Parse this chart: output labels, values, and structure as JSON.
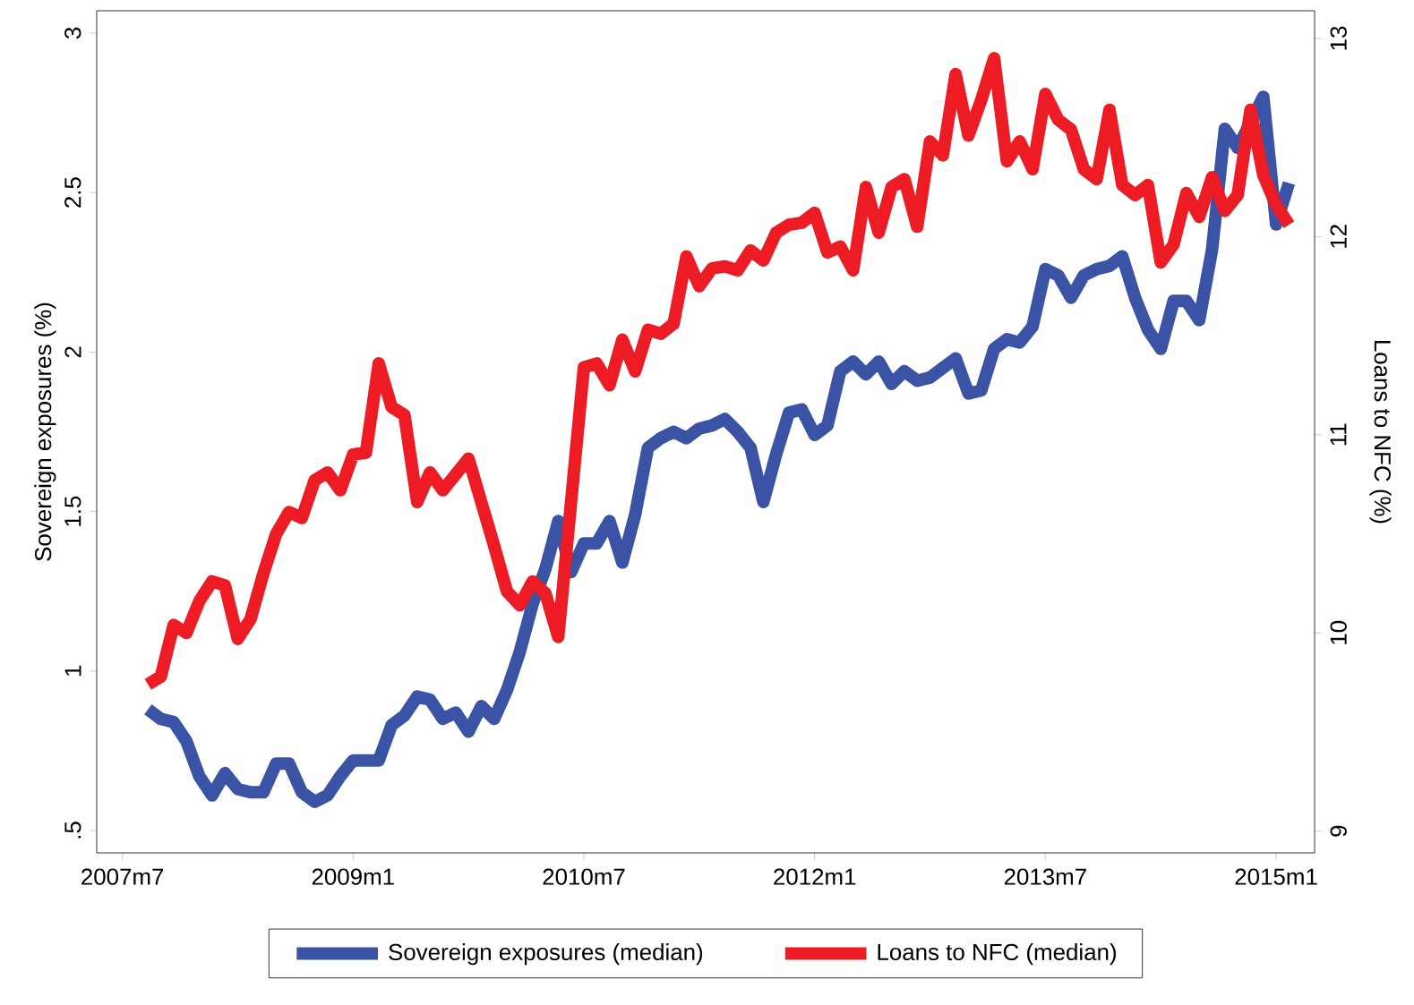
{
  "chart_data": {
    "type": "line",
    "ylabel": "Sovereign exposures (%)",
    "y2label": "Loans to NFC (%)",
    "xlim": [
      "2007-05",
      "2015-04"
    ],
    "xticks": [
      {
        "value": "2007-07",
        "label": "2007m7"
      },
      {
        "value": "2009-01",
        "label": "2009m1"
      },
      {
        "value": "2010-07",
        "label": "2010m7"
      },
      {
        "value": "2012-01",
        "label": "2012m1"
      },
      {
        "value": "2013-07",
        "label": "2013m7"
      },
      {
        "value": "2015-01",
        "label": "2015m1"
      }
    ],
    "ylim": [
      0.43,
      3.07
    ],
    "yticks": [
      {
        "value": 0.5,
        "label": ".5"
      },
      1,
      1.5,
      2,
      2.5,
      3
    ],
    "y2lim": [
      8.89,
      13.14
    ],
    "y2ticks": [
      9,
      10,
      11,
      12,
      13
    ],
    "legend": "bottom",
    "x": [
      "2007-09",
      "2007-10",
      "2007-11",
      "2007-12",
      "2008-01",
      "2008-02",
      "2008-03",
      "2008-04",
      "2008-05",
      "2008-06",
      "2008-07",
      "2008-08",
      "2008-09",
      "2008-10",
      "2008-11",
      "2008-12",
      "2009-01",
      "2009-02",
      "2009-03",
      "2009-04",
      "2009-05",
      "2009-06",
      "2009-07",
      "2009-08",
      "2009-09",
      "2009-10",
      "2009-11",
      "2009-12",
      "2010-01",
      "2010-02",
      "2010-03",
      "2010-04",
      "2010-05",
      "2010-06",
      "2010-07",
      "2010-08",
      "2010-09",
      "2010-10",
      "2010-11",
      "2010-12",
      "2011-01",
      "2011-02",
      "2011-03",
      "2011-04",
      "2011-05",
      "2011-06",
      "2011-07",
      "2011-08",
      "2011-09",
      "2011-10",
      "2011-11",
      "2011-12",
      "2012-01",
      "2012-02",
      "2012-03",
      "2012-04",
      "2012-05",
      "2012-06",
      "2012-07",
      "2012-08",
      "2012-09",
      "2012-10",
      "2012-11",
      "2012-12",
      "2013-01",
      "2013-02",
      "2013-03",
      "2013-04",
      "2013-05",
      "2013-06",
      "2013-07",
      "2013-08",
      "2013-09",
      "2013-10",
      "2013-11",
      "2013-12",
      "2014-01",
      "2014-02",
      "2014-03",
      "2014-04",
      "2014-05",
      "2014-06",
      "2014-07",
      "2014-08",
      "2014-09",
      "2014-10",
      "2014-11",
      "2014-12",
      "2015-01",
      "2015-02"
    ],
    "series": [
      {
        "name": "Sovereign exposures (median)",
        "color": "#3a53a4",
        "values": [
          0.88,
          0.85,
          0.84,
          0.78,
          0.67,
          0.61,
          0.68,
          0.63,
          0.62,
          0.62,
          0.71,
          0.71,
          0.62,
          0.59,
          0.61,
          0.67,
          0.72,
          0.72,
          0.72,
          0.83,
          0.86,
          0.92,
          0.91,
          0.85,
          0.87,
          0.81,
          0.89,
          0.85,
          0.94,
          1.06,
          1.21,
          1.32,
          1.47,
          1.31,
          1.4,
          1.4,
          1.47,
          1.34,
          1.49,
          1.7,
          1.73,
          1.75,
          1.73,
          1.76,
          1.77,
          1.79,
          1.75,
          1.7,
          1.53,
          1.68,
          1.81,
          1.82,
          1.74,
          1.77,
          1.94,
          1.97,
          1.93,
          1.97,
          1.9,
          1.94,
          1.91,
          1.92,
          1.95,
          1.98,
          1.87,
          1.88,
          2.01,
          2.04,
          2.03,
          2.08,
          2.26,
          2.24,
          2.17,
          2.24,
          2.26,
          2.27,
          2.3,
          2.17,
          2.07,
          2.01,
          2.16,
          2.16,
          2.1,
          2.32,
          2.7,
          2.64,
          2.72,
          2.8,
          2.4,
          2.53
        ]
      },
      {
        "name": "Loans to NFC (median)",
        "color": "#ed1c24",
        "axis": "y2",
        "values": [
          9.74,
          9.78,
          10.04,
          10.0,
          10.16,
          10.26,
          10.24,
          9.97,
          10.07,
          10.3,
          10.5,
          10.61,
          10.58,
          10.77,
          10.81,
          10.72,
          10.9,
          10.91,
          11.36,
          11.14,
          11.1,
          10.66,
          10.81,
          10.72,
          10.8,
          10.88,
          10.66,
          10.44,
          10.21,
          10.14,
          10.26,
          10.2,
          9.98,
          10.66,
          11.34,
          11.36,
          11.25,
          11.48,
          11.32,
          11.53,
          11.51,
          11.56,
          11.9,
          11.75,
          11.84,
          11.85,
          11.83,
          11.93,
          11.88,
          12.02,
          12.06,
          12.07,
          12.12,
          11.92,
          11.95,
          11.83,
          12.25,
          12.02,
          12.25,
          12.29,
          12.05,
          12.48,
          12.41,
          12.82,
          12.51,
          12.69,
          12.9,
          12.38,
          12.48,
          12.34,
          12.72,
          12.59,
          12.54,
          12.34,
          12.29,
          12.64,
          12.26,
          12.21,
          12.26,
          11.87,
          11.96,
          12.22,
          12.1,
          12.3,
          12.13,
          12.21,
          12.64,
          12.31,
          12.16,
          12.06
        ]
      }
    ]
  }
}
